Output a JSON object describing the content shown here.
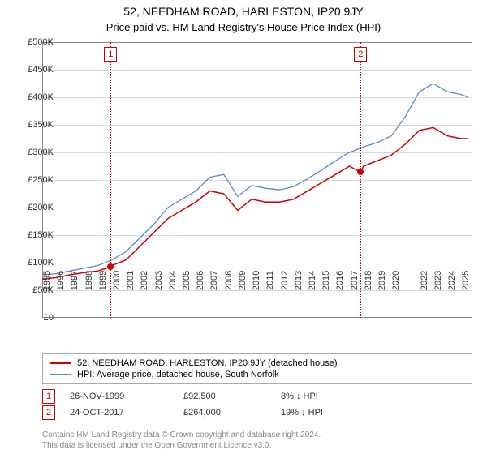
{
  "title": "52, NEEDHAM ROAD, HARLESTON, IP20 9JY",
  "subtitle": "Price paid vs. HM Land Registry's House Price Index (HPI)",
  "chart": {
    "type": "line",
    "background_color": "#ffffff",
    "grid_color": "#d8d8d8",
    "border_color": "#888888",
    "ylim": [
      0,
      500000
    ],
    "ytick_step": 50000,
    "ytick_prefix": "£",
    "ytick_suffix": "K",
    "yticks": [
      {
        "v": 0,
        "label": "£0"
      },
      {
        "v": 50000,
        "label": "£50K"
      },
      {
        "v": 100000,
        "label": "£100K"
      },
      {
        "v": 150000,
        "label": "£150K"
      },
      {
        "v": 200000,
        "label": "£200K"
      },
      {
        "v": 250000,
        "label": "£250K"
      },
      {
        "v": 300000,
        "label": "£300K"
      },
      {
        "v": 350000,
        "label": "£350K"
      },
      {
        "v": 400000,
        "label": "£400K"
      },
      {
        "v": 450000,
        "label": "£450K"
      },
      {
        "v": 500000,
        "label": "£500K"
      }
    ],
    "xlim": [
      1995,
      2025.8
    ],
    "xticks": [
      1995,
      1996,
      1997,
      1998,
      1999,
      2000,
      2001,
      2002,
      2003,
      2004,
      2005,
      2006,
      2007,
      2008,
      2009,
      2010,
      2011,
      2012,
      2013,
      2014,
      2015,
      2016,
      2017,
      2018,
      2019,
      2020,
      2022,
      2023,
      2024,
      2025
    ],
    "series": [
      {
        "name": "property",
        "label": "52, NEEDHAM ROAD, HARLESTON, IP20 9JY (detached house)",
        "color": "#cc0000",
        "line_width": 1.5,
        "data": [
          [
            1995,
            70000
          ],
          [
            1996,
            73000
          ],
          [
            1997,
            78000
          ],
          [
            1998,
            82000
          ],
          [
            1999,
            85000
          ],
          [
            1999.9,
            92500
          ],
          [
            2000,
            95000
          ],
          [
            2001,
            105000
          ],
          [
            2002,
            130000
          ],
          [
            2003,
            155000
          ],
          [
            2004,
            180000
          ],
          [
            2005,
            195000
          ],
          [
            2006,
            210000
          ],
          [
            2007,
            230000
          ],
          [
            2008,
            225000
          ],
          [
            2009,
            195000
          ],
          [
            2010,
            215000
          ],
          [
            2011,
            210000
          ],
          [
            2012,
            210000
          ],
          [
            2013,
            215000
          ],
          [
            2014,
            230000
          ],
          [
            2015,
            245000
          ],
          [
            2016,
            260000
          ],
          [
            2017,
            275000
          ],
          [
            2017.8,
            264000
          ],
          [
            2018,
            275000
          ],
          [
            2019,
            285000
          ],
          [
            2020,
            295000
          ],
          [
            2021,
            315000
          ],
          [
            2022,
            340000
          ],
          [
            2023,
            345000
          ],
          [
            2024,
            330000
          ],
          [
            2025,
            325000
          ],
          [
            2025.5,
            325000
          ]
        ]
      },
      {
        "name": "hpi",
        "label": "HPI: Average price, detached house, South Norfolk",
        "color": "#5b8ac6",
        "line_width": 1.3,
        "data": [
          [
            1995,
            78000
          ],
          [
            1996,
            80000
          ],
          [
            1997,
            85000
          ],
          [
            1998,
            90000
          ],
          [
            1999,
            95000
          ],
          [
            2000,
            105000
          ],
          [
            2001,
            120000
          ],
          [
            2002,
            145000
          ],
          [
            2003,
            170000
          ],
          [
            2004,
            200000
          ],
          [
            2005,
            215000
          ],
          [
            2006,
            230000
          ],
          [
            2007,
            255000
          ],
          [
            2008,
            260000
          ],
          [
            2009,
            220000
          ],
          [
            2010,
            240000
          ],
          [
            2011,
            235000
          ],
          [
            2012,
            232000
          ],
          [
            2013,
            238000
          ],
          [
            2014,
            252000
          ],
          [
            2015,
            268000
          ],
          [
            2016,
            285000
          ],
          [
            2017,
            300000
          ],
          [
            2018,
            310000
          ],
          [
            2019,
            318000
          ],
          [
            2020,
            330000
          ],
          [
            2021,
            365000
          ],
          [
            2022,
            410000
          ],
          [
            2023,
            425000
          ],
          [
            2024,
            410000
          ],
          [
            2025,
            405000
          ],
          [
            2025.5,
            400000
          ]
        ]
      }
    ],
    "markers": [
      {
        "n": "1",
        "x": 1999.9,
        "y": 92500,
        "color": "#cc0000"
      },
      {
        "n": "2",
        "x": 2017.8,
        "y": 264000,
        "color": "#cc0000"
      }
    ],
    "label_fontsize": 11,
    "title_fontsize": 14
  },
  "legend": {
    "border_color": "#aaaaaa",
    "items": [
      {
        "color": "#cc0000",
        "label": "52, NEEDHAM ROAD, HARLESTON, IP20 9JY (detached house)"
      },
      {
        "color": "#5b8ac6",
        "label": "HPI: Average price, detached house, South Norfolk"
      }
    ]
  },
  "sales": [
    {
      "n": "1",
      "date": "26-NOV-1999",
      "price": "£92,500",
      "diff": "8% ↓ HPI"
    },
    {
      "n": "2",
      "date": "24-OCT-2017",
      "price": "£264,000",
      "diff": "19% ↓ HPI"
    }
  ],
  "footer": {
    "line1": "Contains HM Land Registry data © Crown copyright and database right 2024.",
    "line2": "This data is licensed under the Open Government Licence v3.0."
  }
}
